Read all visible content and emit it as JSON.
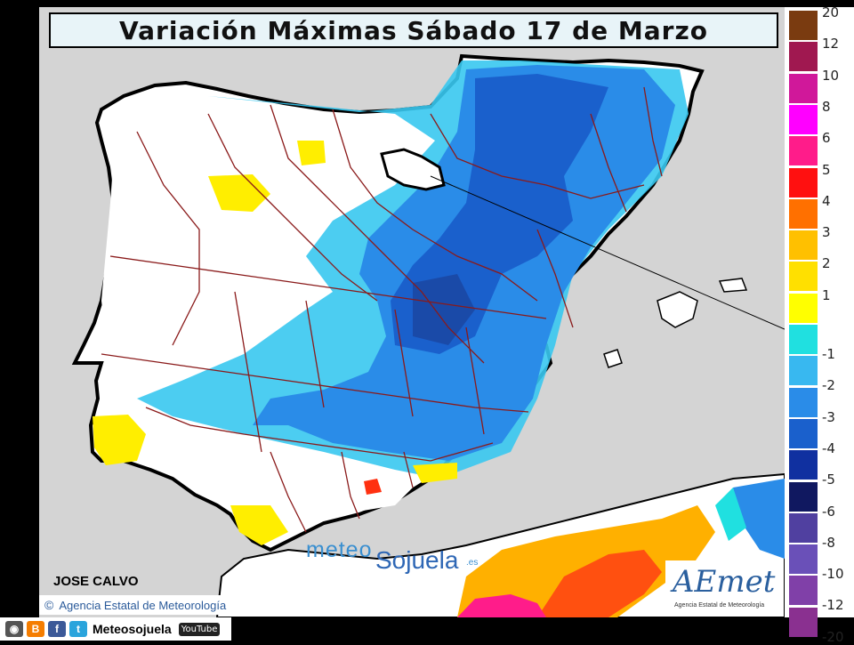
{
  "title": "Variación Máximas Sábado 17 de Marzo",
  "author": "JOSE CALVO",
  "credit": {
    "symbol": "©",
    "text": "Agencia Estatal de Meteorología"
  },
  "logo": {
    "word": "AEmet",
    "subtitle": "Agencia Estatal de Meteorología"
  },
  "watermark": {
    "part1": "meteo",
    "part2": "Sojuela",
    "part3": ".es"
  },
  "social": {
    "handle": "Meteosojuela",
    "youtube": "YouTube",
    "icons": [
      "instagram-icon",
      "blogger-icon",
      "facebook-icon",
      "twitter-icon"
    ]
  },
  "legend": {
    "items": [
      {
        "label": "20",
        "color": "#7a3b10"
      },
      {
        "label": "12",
        "color": "#a01850"
      },
      {
        "label": "10",
        "color": "#d0189a"
      },
      {
        "label": "8",
        "color": "#ff00ff"
      },
      {
        "label": "6",
        "color": "#ff1c8a"
      },
      {
        "label": "5",
        "color": "#ff1010"
      },
      {
        "label": "4",
        "color": "#ff7000"
      },
      {
        "label": "3",
        "color": "#ffc000"
      },
      {
        "label": "2",
        "color": "#ffe000"
      },
      {
        "label": "1",
        "color": "#ffff00"
      },
      {
        "label": "-1",
        "color": "#20e0e0"
      },
      {
        "label": "-2",
        "color": "#38b8f0"
      },
      {
        "label": "-3",
        "color": "#2a8ce8"
      },
      {
        "label": "-4",
        "color": "#1a60cc"
      },
      {
        "label": "-5",
        "color": "#1030a0"
      },
      {
        "label": "-6",
        "color": "#101860"
      },
      {
        "label": "-8",
        "color": "#5040a0"
      },
      {
        "label": "-10",
        "color": "#6a50b8"
      },
      {
        "label": "-12",
        "color": "#8040a8"
      },
      {
        "label": "-20",
        "color": "#8a3090"
      }
    ]
  },
  "colors": {
    "sea": "#d4d4d4",
    "land_white": "#ffffff",
    "border": "#000000",
    "province": "#8a1a1a"
  }
}
